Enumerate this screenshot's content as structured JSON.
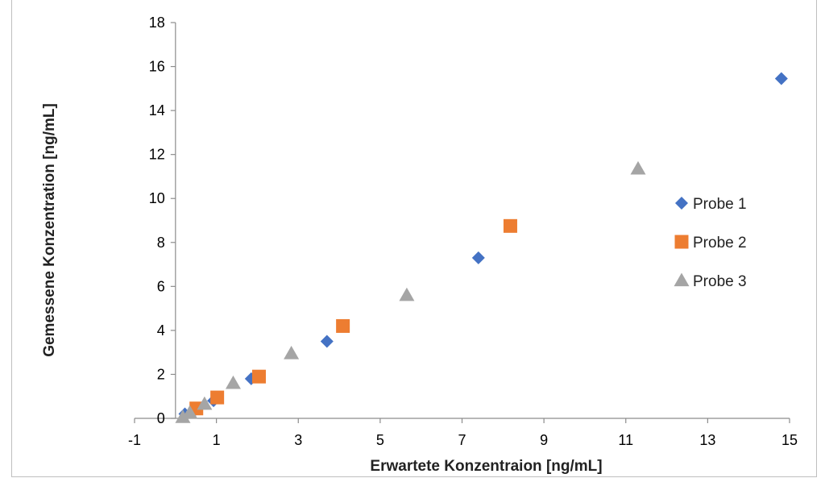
{
  "chart_data": {
    "type": "scatter",
    "title": "",
    "xlabel": "Erwartete  Konzentraion [ng/mL]",
    "ylabel": "Gemessene Konzentration [ng/mL]",
    "xlim": [
      -1,
      15
    ],
    "ylim": [
      0,
      18
    ],
    "x_ticks": [
      "-1",
      "1",
      "3",
      "5",
      "7",
      "9",
      "11",
      "13",
      "15"
    ],
    "y_ticks": [
      "0",
      "2",
      "4",
      "6",
      "8",
      "10",
      "12",
      "14",
      "16",
      "18"
    ],
    "grid": false,
    "legend_position": "right",
    "series": [
      {
        "name": "Probe 1",
        "marker": "diamond",
        "color": "#4472C4",
        "x": [
          0.23,
          0.46,
          0.93,
          1.85,
          3.7,
          7.4,
          14.8
        ],
        "y": [
          0.2,
          0.35,
          0.8,
          1.8,
          3.5,
          7.3,
          15.45
        ]
      },
      {
        "name": "Probe 2",
        "marker": "square",
        "color": "#ED7D31",
        "x": [
          0.51,
          1.02,
          2.04,
          4.09,
          8.18
        ],
        "y": [
          0.45,
          0.95,
          1.9,
          4.2,
          8.75
        ]
      },
      {
        "name": "Probe 3",
        "marker": "triangle",
        "color": "#A5A5A5",
        "x": [
          0.18,
          0.35,
          0.71,
          1.41,
          2.83,
          5.65,
          11.3
        ],
        "y": [
          0.05,
          0.25,
          0.65,
          1.6,
          2.95,
          5.6,
          11.35
        ]
      }
    ]
  }
}
